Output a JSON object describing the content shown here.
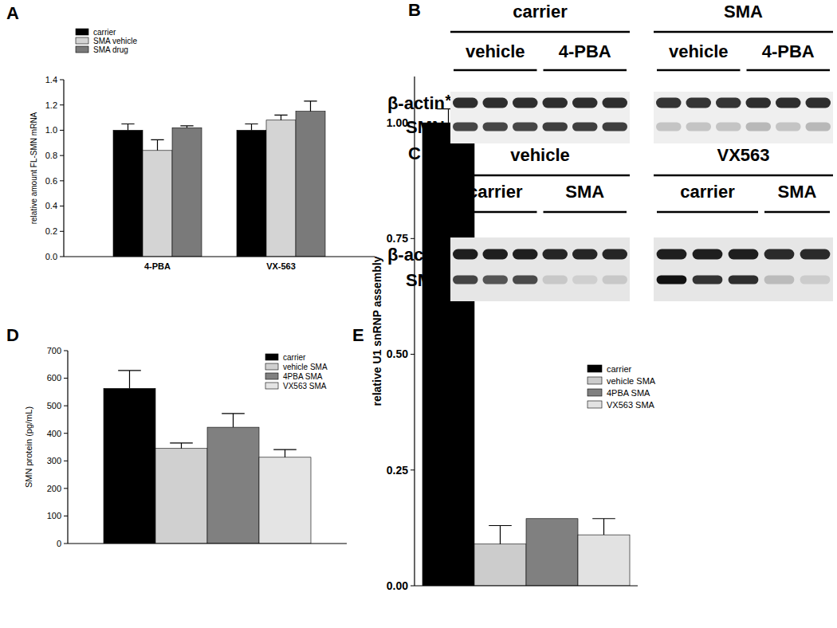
{
  "chart_data": [
    {
      "panel": "A",
      "type": "bar",
      "categories": [
        "4-PBA",
        "VX-563"
      ],
      "ylabel": "relative amount FL-SMN mRNA",
      "ylim": [
        0,
        1.4
      ],
      "yticks": [
        {
          "value": 0,
          "label": "0.0"
        },
        {
          "value": 0.2,
          "label": "0.2"
        },
        {
          "value": 0.4,
          "label": "0.4"
        },
        {
          "value": 0.6,
          "label": "0.6"
        },
        {
          "value": 0.8,
          "label": "0.8"
        },
        {
          "value": 1.0,
          "label": "1.0"
        },
        {
          "value": 1.2,
          "label": "1.2"
        },
        {
          "value": 1.4,
          "label": "1.4"
        }
      ],
      "grid": false,
      "legend": "upper left",
      "series": [
        {
          "name": "carrier",
          "color": "#000000",
          "values": [
            1.0,
            1.0
          ],
          "errors": [
            0.05,
            0.05
          ]
        },
        {
          "name": "SMA vehicle",
          "color": "#d4d4d4",
          "values": [
            0.84,
            1.08
          ],
          "errors": [
            0.085,
            0.04
          ]
        },
        {
          "name": "SMA drug",
          "color": "#7a7a7a",
          "values": [
            1.02,
            1.15
          ],
          "errors": [
            0.015,
            0.08
          ]
        }
      ]
    },
    {
      "panel": "D",
      "type": "bar",
      "categories": [
        null
      ],
      "ylabel": "SMN protein (pg/mL)",
      "ylim": [
        0,
        700
      ],
      "yticks": [
        0,
        100,
        200,
        300,
        400,
        500,
        600,
        700
      ],
      "grid": false,
      "legend": "upper right",
      "series": [
        {
          "name": "carrier",
          "color": "#000000",
          "values": [
            563
          ],
          "errors": [
            65
          ]
        },
        {
          "name": "vehicle SMA",
          "color": "#d0d0d0",
          "values": [
            345
          ],
          "errors": [
            20
          ]
        },
        {
          "name": "4PBA SMA",
          "color": "#808080",
          "values": [
            422
          ],
          "errors": [
            50
          ]
        },
        {
          "name": "VX563 SMA",
          "color": "#e4e4e4",
          "values": [
            313
          ],
          "errors": [
            28
          ]
        }
      ]
    },
    {
      "panel": "E",
      "type": "bar",
      "categories": [
        null
      ],
      "ylabel": "relative U1 snRNP assembly",
      "ylim": [
        0,
        1.1
      ],
      "yticks": [
        {
          "value": 0,
          "label": "0.00"
        },
        {
          "value": 0.25,
          "label": "0.25"
        },
        {
          "value": 0.5,
          "label": "0.50"
        },
        {
          "value": 0.75,
          "label": "0.75"
        },
        {
          "value": 1.0,
          "label": "1.00"
        }
      ],
      "grid": false,
      "legend": "upper right",
      "annotations": [
        {
          "text": "*",
          "series": 0,
          "index": 0
        }
      ],
      "series": [
        {
          "name": "carrier",
          "color": "#000000",
          "values": [
            1.0
          ],
          "errors": [
            0.03
          ]
        },
        {
          "name": "vehicle SMA",
          "color": "#cccccc",
          "values": [
            0.09
          ],
          "errors": [
            0.04
          ]
        },
        {
          "name": "4PBA SMA",
          "color": "#808080",
          "values": [
            0.145
          ],
          "errors": [
            null
          ]
        },
        {
          "name": "VX563 SMA",
          "color": "#e2e2e2",
          "values": [
            0.11
          ],
          "errors": [
            0.035
          ]
        }
      ]
    }
  ],
  "blots": [
    {
      "panel": "B",
      "rows": [
        "β-actin",
        "SMN"
      ],
      "groups": [
        {
          "label": "carrier",
          "subgroups": [
            {
              "label": "vehicle",
              "colors": [
                [
                  "#2e2e2e",
                  "#464646"
                ],
                [
                  "#2e2e2e",
                  "#464646"
                ],
                [
                  "#2e2e2e",
                  "#464646"
                ]
              ]
            },
            {
              "label": "4-PBA",
              "colors": [
                [
                  "#2e2e2e",
                  "#3e3e3e"
                ],
                [
                  "#2e2e2e",
                  "#3e3e3e"
                ],
                [
                  "#2e2e2e",
                  "#3e3e3e"
                ]
              ]
            }
          ]
        },
        {
          "label": "SMA",
          "subgroups": [
            {
              "label": "vehicle",
              "colors": [
                [
                  "#353535",
                  "#c4c4c4"
                ],
                [
                  "#353535",
                  "#c4c4c4"
                ],
                [
                  "#353535",
                  "#c4c4c4"
                ]
              ]
            },
            {
              "label": "4-PBA",
              "colors": [
                [
                  "#2e2e2e",
                  "#b8b8b8"
                ],
                [
                  "#2e2e2e",
                  "#c4c4c4"
                ],
                [
                  "#2e2e2e",
                  "#b8b8b8"
                ]
              ]
            }
          ]
        }
      ]
    },
    {
      "panel": "C",
      "rows": [
        "β-actin",
        "SMN"
      ],
      "groups": [
        {
          "label": "vehicle",
          "subgroups": [
            {
              "label": "carrier",
              "colors": [
                [
                  "#1e1e1e",
                  "#444444"
                ],
                [
                  "#1e1e1e",
                  "#555555"
                ],
                [
                  "#1e1e1e",
                  "#4a4a4a"
                ]
              ]
            },
            {
              "label": "SMA",
              "colors": [
                [
                  "#262626",
                  "#c8c8c8"
                ],
                [
                  "#262626",
                  "#cfcfcf"
                ],
                [
                  "#262626",
                  "#c8c8c8"
                ]
              ]
            }
          ]
        },
        {
          "label": "VX563",
          "subgroups": [
            {
              "label": "carrier",
              "colors": [
                [
                  "#1e1e1e",
                  "#111111"
                ],
                [
                  "#1e1e1e",
                  "#333333"
                ],
                [
                  "#1e1e1e",
                  "#2e2e2e"
                ]
              ]
            },
            {
              "label": "SMA",
              "colors": [
                [
                  "#2a2a2a",
                  "#bbbbbb"
                ],
                [
                  "#2a2a2a",
                  "#cccccc"
                ]
              ]
            }
          ]
        }
      ]
    }
  ]
}
